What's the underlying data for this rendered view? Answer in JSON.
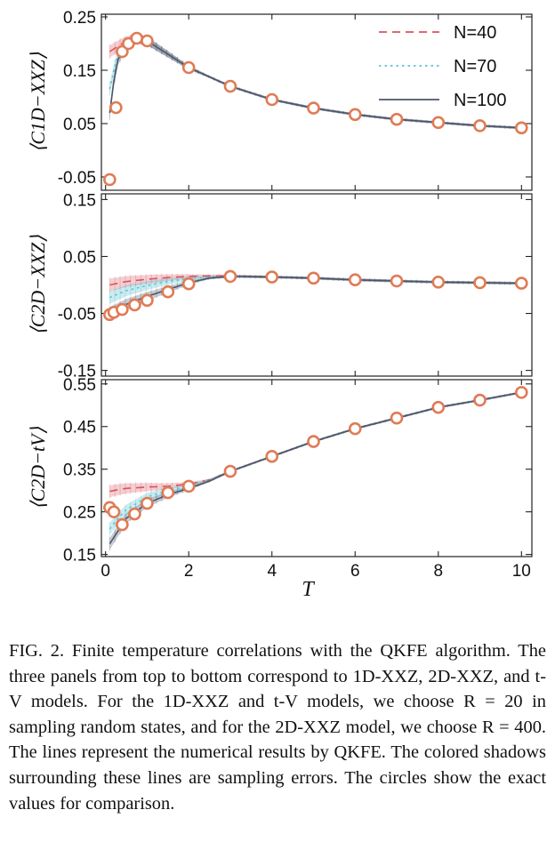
{
  "chart_data": {
    "type": "line",
    "xlabel": "T",
    "x_ticks": [
      0,
      2,
      4,
      6,
      8,
      10
    ],
    "xlim": [
      -0.1,
      10.25
    ],
    "legend": {
      "placement": "top-right",
      "entries": [
        {
          "label": "N=40",
          "color": "#d9535c",
          "style": "dashed"
        },
        {
          "label": "N=70",
          "color": "#5fc2d2",
          "style": "dotted"
        },
        {
          "label": "N=100",
          "color": "#4a5669",
          "style": "solid"
        }
      ]
    },
    "colors": {
      "exact": "#e07b55",
      "n40": "#d9535c",
      "n70": "#5fc2d2",
      "n100": "#4a5669"
    },
    "panels": [
      {
        "ylabel": "⟨C1D−XXZ⟩",
        "ylim": [
          -0.075,
          0.255
        ],
        "y_ticks": [
          0.25,
          0.15,
          0.05,
          -0.05
        ],
        "y_tick_labels": [
          "0.25",
          "0.15",
          "0.05",
          "-0.05"
        ],
        "exact": {
          "x": [
            0.1,
            0.25,
            0.4,
            0.55,
            0.75,
            1,
            2,
            3,
            4,
            5,
            6,
            7,
            8,
            9,
            10
          ],
          "y": [
            -0.055,
            0.08,
            0.185,
            0.2,
            0.21,
            0.205,
            0.155,
            0.12,
            0.095,
            0.079,
            0.067,
            0.058,
            0.052,
            0.046,
            0.042
          ]
        },
        "series": [
          {
            "name": "N=40",
            "x": [
              0.1,
              0.2,
              0.3,
              0.4,
              0.55,
              0.75,
              1,
              1.5,
              2,
              3,
              4,
              5,
              6,
              7,
              8,
              9,
              10
            ],
            "y": [
              0.185,
              0.19,
              0.195,
              0.2,
              0.205,
              0.21,
              0.205,
              0.18,
              0.155,
              0.12,
              0.095,
              0.079,
              0.067,
              0.058,
              0.052,
              0.046,
              0.042
            ]
          },
          {
            "name": "N=70",
            "x": [
              0.1,
              0.2,
              0.3,
              0.4,
              0.55,
              0.75,
              1,
              1.5,
              2,
              3,
              4,
              5,
              6,
              7,
              8,
              9,
              10
            ],
            "y": [
              0.115,
              0.15,
              0.18,
              0.19,
              0.2,
              0.21,
              0.205,
              0.18,
              0.155,
              0.12,
              0.095,
              0.079,
              0.067,
              0.058,
              0.052,
              0.046,
              0.042
            ]
          },
          {
            "name": "N=100",
            "x": [
              0.1,
              0.2,
              0.3,
              0.4,
              0.55,
              0.75,
              1,
              1.5,
              2,
              3,
              4,
              5,
              6,
              7,
              8,
              9,
              10
            ],
            "y": [
              0.07,
              0.13,
              0.17,
              0.185,
              0.2,
              0.21,
              0.205,
              0.18,
              0.155,
              0.12,
              0.095,
              0.079,
              0.067,
              0.058,
              0.052,
              0.046,
              0.042
            ]
          }
        ]
      },
      {
        "ylabel": "⟨C2D−XXZ⟩",
        "ylim": [
          -0.16,
          0.16
        ],
        "y_ticks": [
          0.15,
          0.05,
          -0.05,
          -0.15
        ],
        "y_tick_labels": [
          "0.15",
          "0.05",
          "-0.05",
          "-0.15"
        ],
        "exact": {
          "x": [
            0.1,
            0.2,
            0.4,
            0.7,
            1,
            1.5,
            2,
            3,
            4,
            5,
            6,
            7,
            8,
            9,
            10
          ],
          "y": [
            -0.052,
            -0.048,
            -0.043,
            -0.035,
            -0.027,
            -0.012,
            0.002,
            0.015,
            0.014,
            0.012,
            0.009,
            0.007,
            0.005,
            0.004,
            0.003
          ]
        },
        "series": [
          {
            "name": "N=40",
            "x": [
              0.1,
              0.3,
              0.5,
              1,
              1.5,
              2,
              2.5,
              3,
              4,
              5,
              6,
              7,
              8,
              9,
              10
            ],
            "y": [
              0.0,
              0.003,
              0.006,
              0.01,
              0.013,
              0.015,
              0.016,
              0.016,
              0.014,
              0.012,
              0.009,
              0.007,
              0.005,
              0.004,
              0.003
            ]
          },
          {
            "name": "N=70",
            "x": [
              0.1,
              0.3,
              0.5,
              1,
              1.5,
              2,
              2.5,
              3,
              4,
              5,
              6,
              7,
              8,
              9,
              10
            ],
            "y": [
              -0.022,
              -0.016,
              -0.01,
              -0.001,
              0.006,
              0.011,
              0.014,
              0.015,
              0.014,
              0.012,
              0.009,
              0.007,
              0.005,
              0.004,
              0.003
            ]
          },
          {
            "name": "N=100",
            "x": [
              0.1,
              0.3,
              0.5,
              1,
              1.5,
              2,
              2.5,
              3,
              4,
              5,
              6,
              7,
              8,
              9,
              10
            ],
            "y": [
              -0.05,
              -0.042,
              -0.034,
              -0.02,
              -0.008,
              0.004,
              0.012,
              0.015,
              0.014,
              0.012,
              0.009,
              0.007,
              0.005,
              0.004,
              0.003
            ]
          }
        ]
      },
      {
        "ylabel": "⟨C2D−tV⟩",
        "ylim": [
          0.145,
          0.56
        ],
        "y_ticks": [
          0.55,
          0.45,
          0.35,
          0.25,
          0.15
        ],
        "y_tick_labels": [
          "0.55",
          "0.45",
          "0.35",
          "0.25",
          "0.15"
        ],
        "exact": {
          "x": [
            0.1,
            0.2,
            0.4,
            0.7,
            1,
            1.5,
            2,
            3,
            4,
            5,
            6,
            7,
            8,
            9,
            10
          ],
          "y": [
            0.26,
            0.25,
            0.22,
            0.245,
            0.27,
            0.295,
            0.31,
            0.345,
            0.38,
            0.415,
            0.445,
            0.47,
            0.495,
            0.512,
            0.53
          ]
        },
        "series": [
          {
            "name": "N=40",
            "x": [
              0.1,
              0.3,
              0.5,
              1,
              1.5,
              2,
              2.5,
              3,
              4,
              5,
              6,
              7,
              8,
              9,
              10
            ],
            "y": [
              0.298,
              0.302,
              0.305,
              0.308,
              0.31,
              0.315,
              0.325,
              0.345,
              0.38,
              0.415,
              0.445,
              0.47,
              0.495,
              0.512,
              0.53
            ]
          },
          {
            "name": "N=70",
            "x": [
              0.1,
              0.3,
              0.5,
              1,
              1.5,
              2,
              2.5,
              3,
              4,
              5,
              6,
              7,
              8,
              9,
              10
            ],
            "y": [
              0.21,
              0.235,
              0.255,
              0.285,
              0.3,
              0.31,
              0.325,
              0.345,
              0.38,
              0.415,
              0.445,
              0.47,
              0.495,
              0.512,
              0.53
            ]
          },
          {
            "name": "N=100",
            "x": [
              0.1,
              0.3,
              0.5,
              1,
              1.5,
              2,
              2.5,
              3,
              4,
              5,
              6,
              7,
              8,
              9,
              10
            ],
            "y": [
              0.175,
              0.205,
              0.235,
              0.27,
              0.29,
              0.305,
              0.322,
              0.345,
              0.38,
              0.415,
              0.445,
              0.47,
              0.495,
              0.512,
              0.53
            ]
          }
        ]
      }
    ]
  },
  "caption": {
    "label": "FIG. 2.",
    "text": "Finite temperature correlations with the QKFE algorithm. The three panels from top to bottom correspond to 1D-XXZ, 2D-XXZ, and t-V models. For the 1D-XXZ and t-V models, we choose R = 20 in sampling random states, and for the 2D-XXZ model, we choose R = 400. The lines represent the numerical results by QKFE. The colored shadows surrounding these lines are sampling errors. The circles show the exact values for comparison."
  }
}
